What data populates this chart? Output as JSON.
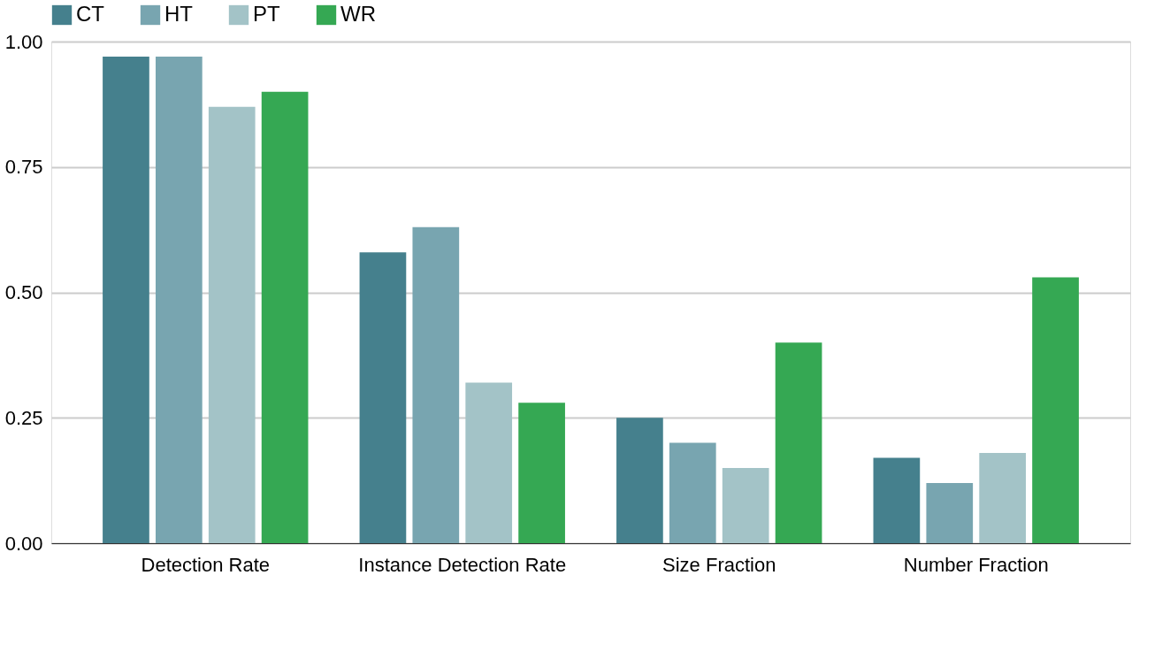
{
  "chart_data": {
    "type": "bar",
    "categories": [
      "Detection Rate",
      "Instance Detection Rate",
      "Size Fraction",
      "Number Fraction"
    ],
    "series": [
      {
        "name": "CT",
        "color": "#45808d",
        "values": [
          0.97,
          0.58,
          0.25,
          0.17
        ]
      },
      {
        "name": "HT",
        "color": "#78a5b0",
        "values": [
          0.97,
          0.63,
          0.2,
          0.12
        ]
      },
      {
        "name": "PT",
        "color": "#a3c3c7",
        "values": [
          0.87,
          0.32,
          0.15,
          0.18
        ]
      },
      {
        "name": "WR",
        "color": "#35a853",
        "values": [
          0.9,
          0.28,
          0.4,
          0.53
        ]
      }
    ],
    "ylim": [
      0,
      1
    ],
    "yticks": [
      {
        "value": 0,
        "label": "0.00"
      },
      {
        "value": 0.25,
        "label": "0.25"
      },
      {
        "value": 0.5,
        "label": "0.50"
      },
      {
        "value": 0.75,
        "label": "0.75"
      },
      {
        "value": 1,
        "label": "1.00"
      }
    ],
    "grid": "y",
    "legend": "top"
  }
}
